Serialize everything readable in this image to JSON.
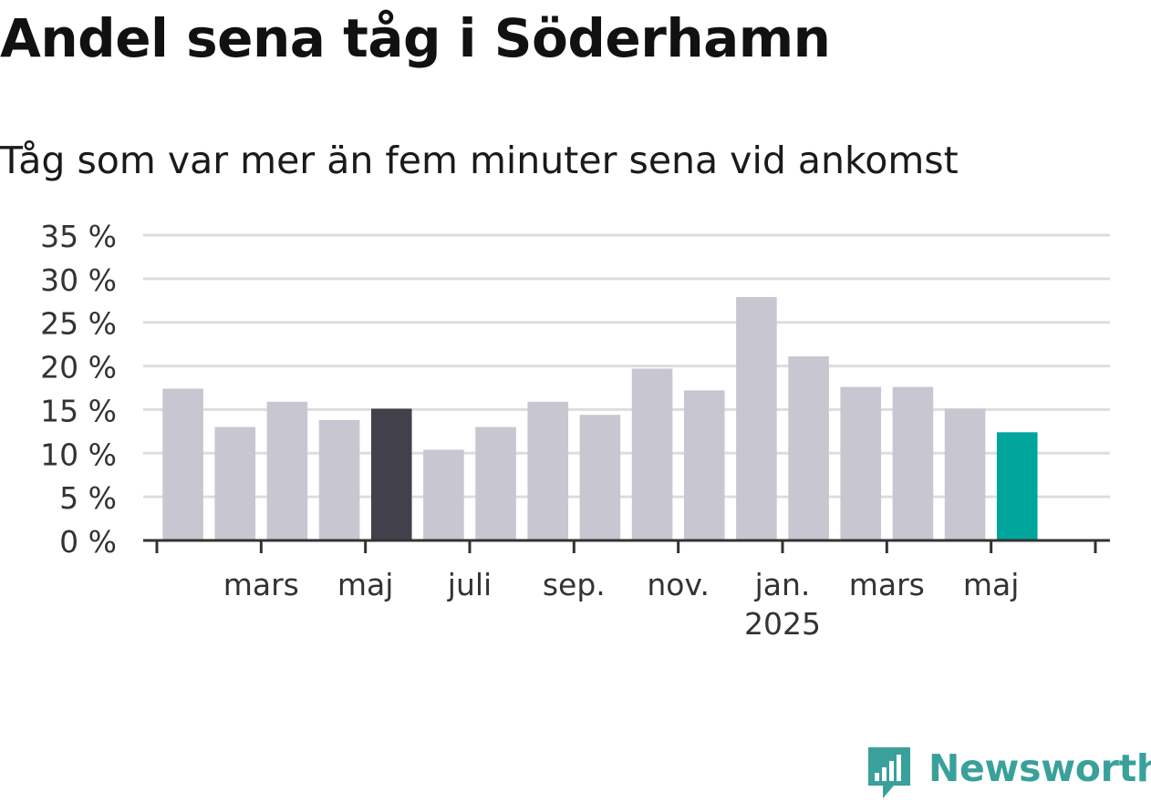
{
  "header": {
    "title": "Andel sena tåg i Söderhamn",
    "subtitle": "Tåg som var mer än fem minuter sena vid ankomst"
  },
  "brand": {
    "name": "Newsworthy",
    "icon": "newsworthy-logo-icon",
    "color": "#3aa09b"
  },
  "colors": {
    "bar_default": "#c8c6d1",
    "bar_highlight_year_ago": "#42404b",
    "bar_latest": "#00a59b",
    "grid": "#dddddd",
    "axis": "#333333"
  },
  "chart_data": {
    "type": "bar",
    "title": "Andel sena tåg i Söderhamn",
    "subtitle": "Tåg som var mer än fem minuter sena vid ankomst",
    "xlabel": "",
    "ylabel": "",
    "y_unit": "%",
    "ylim": [
      0,
      35
    ],
    "yticks": [
      0,
      5,
      10,
      15,
      20,
      25,
      30,
      35
    ],
    "ytick_labels": [
      "0 %",
      "5 %",
      "10 %",
      "15 %",
      "20 %",
      "25 %",
      "30 %",
      "35 %"
    ],
    "grid": true,
    "legend": "none",
    "categories": [
      "2024-01",
      "2024-02",
      "2024-03",
      "2024-04",
      "2024-05",
      "2024-06",
      "2024-07",
      "2024-08",
      "2024-09",
      "2024-10",
      "2024-11",
      "2024-12",
      "2025-01",
      "2025-02",
      "2025-03",
      "2025-04",
      "2025-05",
      "2025-06"
    ],
    "values": [
      17.4,
      13.0,
      15.9,
      13.8,
      15.1,
      10.4,
      13.0,
      15.9,
      14.4,
      19.7,
      17.2,
      27.9,
      21.1,
      17.6,
      17.6,
      15.1,
      12.4,
      null
    ],
    "bar_highlight": {
      "year_ago_index": 4,
      "latest_index": 16
    },
    "x_ticks": [
      {
        "label": "mars",
        "sublabel": "",
        "index": 2
      },
      {
        "label": "maj",
        "sublabel": "",
        "index": 4
      },
      {
        "label": "juli",
        "sublabel": "",
        "index": 6
      },
      {
        "label": "sep.",
        "sublabel": "",
        "index": 8
      },
      {
        "label": "nov.",
        "sublabel": "",
        "index": 10
      },
      {
        "label": "jan.",
        "sublabel": "2025",
        "index": 12
      },
      {
        "label": "mars",
        "sublabel": "",
        "index": 14
      },
      {
        "label": "maj",
        "sublabel": "",
        "index": 16
      }
    ]
  }
}
